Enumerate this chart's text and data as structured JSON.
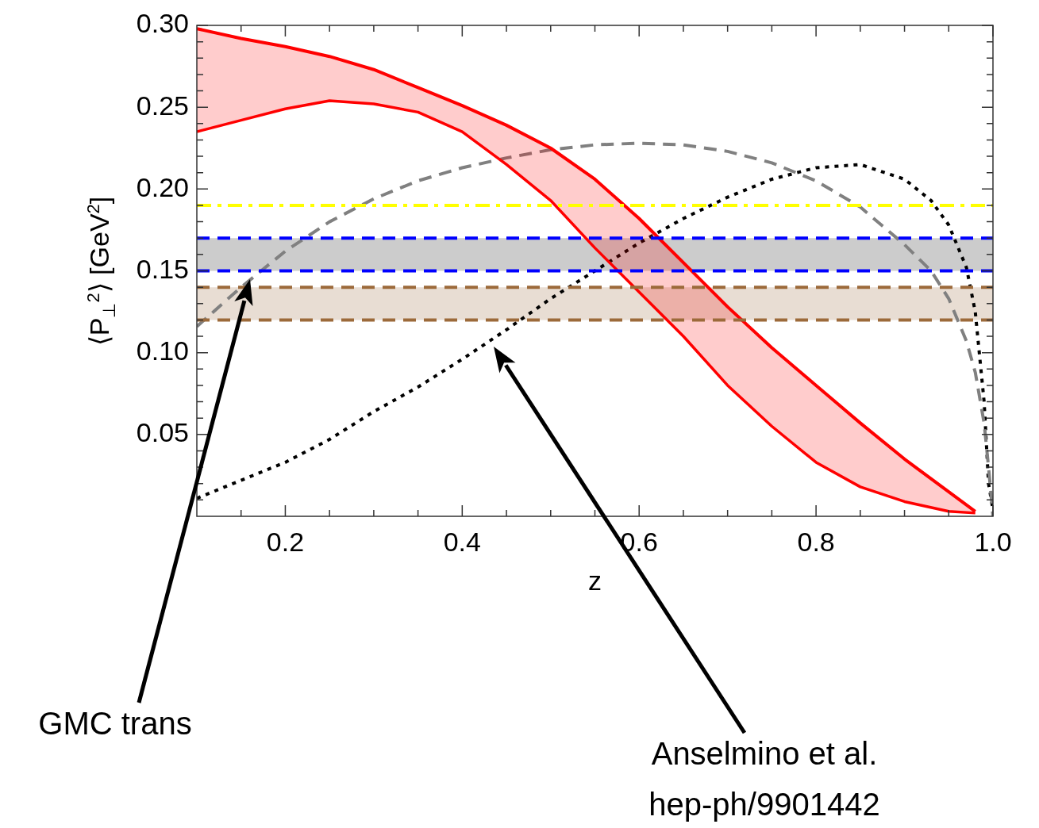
{
  "chart_data": {
    "type": "line",
    "xlabel": "z",
    "ylabel": "⟨P$_{⊥}$$^{2}$⟩ [GeV$^{2}$]",
    "xlim": [
      0.1,
      1.0
    ],
    "ylim": [
      0,
      0.3
    ],
    "xticks": [
      {
        "value": 0.15,
        "label": null
      },
      0.2,
      {
        "value": 0.25,
        "label": null
      },
      {
        "value": 0.3,
        "label": null
      },
      {
        "value": 0.35,
        "label": null
      },
      0.4,
      {
        "value": 0.45,
        "label": null
      },
      {
        "value": 0.5,
        "label": null
      },
      {
        "value": 0.55,
        "label": null
      },
      0.6,
      {
        "value": 0.65,
        "label": null
      },
      {
        "value": 0.7,
        "label": null
      },
      {
        "value": 0.75,
        "label": null
      },
      0.8,
      {
        "value": 0.85,
        "label": null
      },
      {
        "value": 0.9,
        "label": null
      },
      {
        "value": 0.95,
        "label": null
      },
      {
        "value": 1.0,
        "label": "1.0"
      }
    ],
    "yticks": [
      {
        "value": 0.01,
        "label": null
      },
      {
        "value": 0.02,
        "label": null
      },
      {
        "value": 0.03,
        "label": null
      },
      {
        "value": 0.04,
        "label": null
      },
      0.05,
      {
        "value": 0.06,
        "label": null
      },
      {
        "value": 0.07,
        "label": null
      },
      {
        "value": 0.08,
        "label": null
      },
      {
        "value": 0.09,
        "label": null
      },
      {
        "value": 0.1,
        "label": "0.10"
      },
      {
        "value": 0.11,
        "label": null
      },
      {
        "value": 0.12,
        "label": null
      },
      {
        "value": 0.13,
        "label": null
      },
      {
        "value": 0.14,
        "label": null
      },
      0.15,
      {
        "value": 0.16,
        "label": null
      },
      {
        "value": 0.17,
        "label": null
      },
      {
        "value": 0.18,
        "label": null
      },
      {
        "value": 0.19,
        "label": null
      },
      {
        "value": 0.2,
        "label": "0.20"
      },
      {
        "value": 0.21,
        "label": null
      },
      {
        "value": 0.22,
        "label": null
      },
      {
        "value": 0.23,
        "label": null
      },
      {
        "value": 0.24,
        "label": null
      },
      0.25,
      {
        "value": 0.26,
        "label": null
      },
      {
        "value": 0.27,
        "label": null
      },
      {
        "value": 0.28,
        "label": null
      },
      {
        "value": 0.29,
        "label": null
      },
      {
        "value": 0.3,
        "label": "0.30"
      }
    ],
    "grid": false,
    "legend": false,
    "marker": "none",
    "series": [
      {
        "color": "#ff0000",
        "x": [
          0.1,
          0.15,
          0.2,
          0.25,
          0.3,
          0.35,
          0.4,
          0.45,
          0.5,
          0.55,
          0.6,
          0.65,
          0.7,
          0.75,
          0.8,
          0.85,
          0.9,
          0.95,
          0.98
        ],
        "values": [
          0.298,
          0.292,
          0.287,
          0.281,
          0.273,
          0.262,
          0.251,
          0.239,
          0.225,
          0.206,
          0.182,
          0.155,
          0.128,
          0.103,
          0.08,
          0.057,
          0.035,
          0.015,
          0.003
        ]
      },
      {
        "color": "#ff0000",
        "x": [
          0.1,
          0.15,
          0.2,
          0.25,
          0.3,
          0.35,
          0.4,
          0.45,
          0.5,
          0.55,
          0.6,
          0.65,
          0.7,
          0.75,
          0.8,
          0.85,
          0.9,
          0.95,
          0.98
        ],
        "values": [
          0.235,
          0.242,
          0.249,
          0.254,
          0.252,
          0.247,
          0.235,
          0.215,
          0.193,
          0.164,
          0.137,
          0.11,
          0.08,
          0.055,
          0.033,
          0.018,
          0.009,
          0.003,
          0.002
        ],
        "upper": [
          0.298,
          0.292,
          0.287,
          0.281,
          0.273,
          0.262,
          0.251,
          0.239,
          0.225,
          0.206,
          0.182,
          0.155,
          0.128,
          0.103,
          0.08,
          0.057,
          0.035,
          0.015,
          0.003
        ],
        "lower": [
          0.235,
          0.242,
          0.249,
          0.254,
          0.252,
          0.247,
          0.235,
          0.215,
          0.193,
          0.164,
          0.137,
          0.11,
          0.08,
          0.055,
          0.033,
          0.018,
          0.009,
          0.003,
          0.002
        ]
      },
      {
        "color": "#808080",
        "line_style": "dashed",
        "x": [
          0.1,
          0.15,
          0.2,
          0.25,
          0.3,
          0.35,
          0.4,
          0.45,
          0.5,
          0.55,
          0.6,
          0.65,
          0.7,
          0.75,
          0.8,
          0.85,
          0.9,
          0.93,
          0.95,
          0.97,
          0.98,
          0.99,
          0.995,
          1.0
        ],
        "values": [
          0.116,
          0.14,
          0.162,
          0.18,
          0.194,
          0.205,
          0.213,
          0.219,
          0.224,
          0.227,
          0.228,
          0.227,
          0.223,
          0.216,
          0.205,
          0.189,
          0.166,
          0.15,
          0.133,
          0.107,
          0.088,
          0.057,
          0.03,
          0.0
        ]
      },
      {
        "color": "#000000",
        "line_style": "dotted",
        "x": [
          0.1,
          0.15,
          0.2,
          0.25,
          0.3,
          0.35,
          0.4,
          0.45,
          0.5,
          0.55,
          0.6,
          0.65,
          0.7,
          0.75,
          0.8,
          0.85,
          0.9,
          0.93,
          0.95,
          0.97,
          0.98,
          0.99,
          0.995,
          1.0
        ],
        "values": [
          0.011,
          0.022,
          0.033,
          0.047,
          0.064,
          0.079,
          0.096,
          0.114,
          0.133,
          0.15,
          0.167,
          0.182,
          0.195,
          0.206,
          0.213,
          0.215,
          0.206,
          0.193,
          0.178,
          0.152,
          0.125,
          0.07,
          0.02,
          0.004
        ]
      }
    ],
    "bands": [
      {
        "axis": "y",
        "from": 0.15,
        "to": 0.17,
        "color": "#cccccc"
      },
      {
        "axis": "y",
        "from": 0.12,
        "to": 0.14,
        "color": "#e8ddd3"
      }
    ],
    "ref_lines": [
      {
        "axis": "y",
        "value": 0.19,
        "color": "#ffff00",
        "line_style": "dashdot"
      },
      {
        "axis": "y",
        "value": 0.17,
        "color": "#0000ff",
        "line_style": "dashed"
      },
      {
        "axis": "y",
        "value": 0.15,
        "color": "#0000ff",
        "line_style": "dashed"
      },
      {
        "axis": "y",
        "value": 0.14,
        "color": "#9c6a3a",
        "line_style": "dashed"
      },
      {
        "axis": "y",
        "value": 0.12,
        "color": "#9c6a3a",
        "line_style": "dashed"
      }
    ],
    "annotations": [
      "GMC trans",
      "Anselmino et al.\nhep-ph/9901442"
    ]
  }
}
